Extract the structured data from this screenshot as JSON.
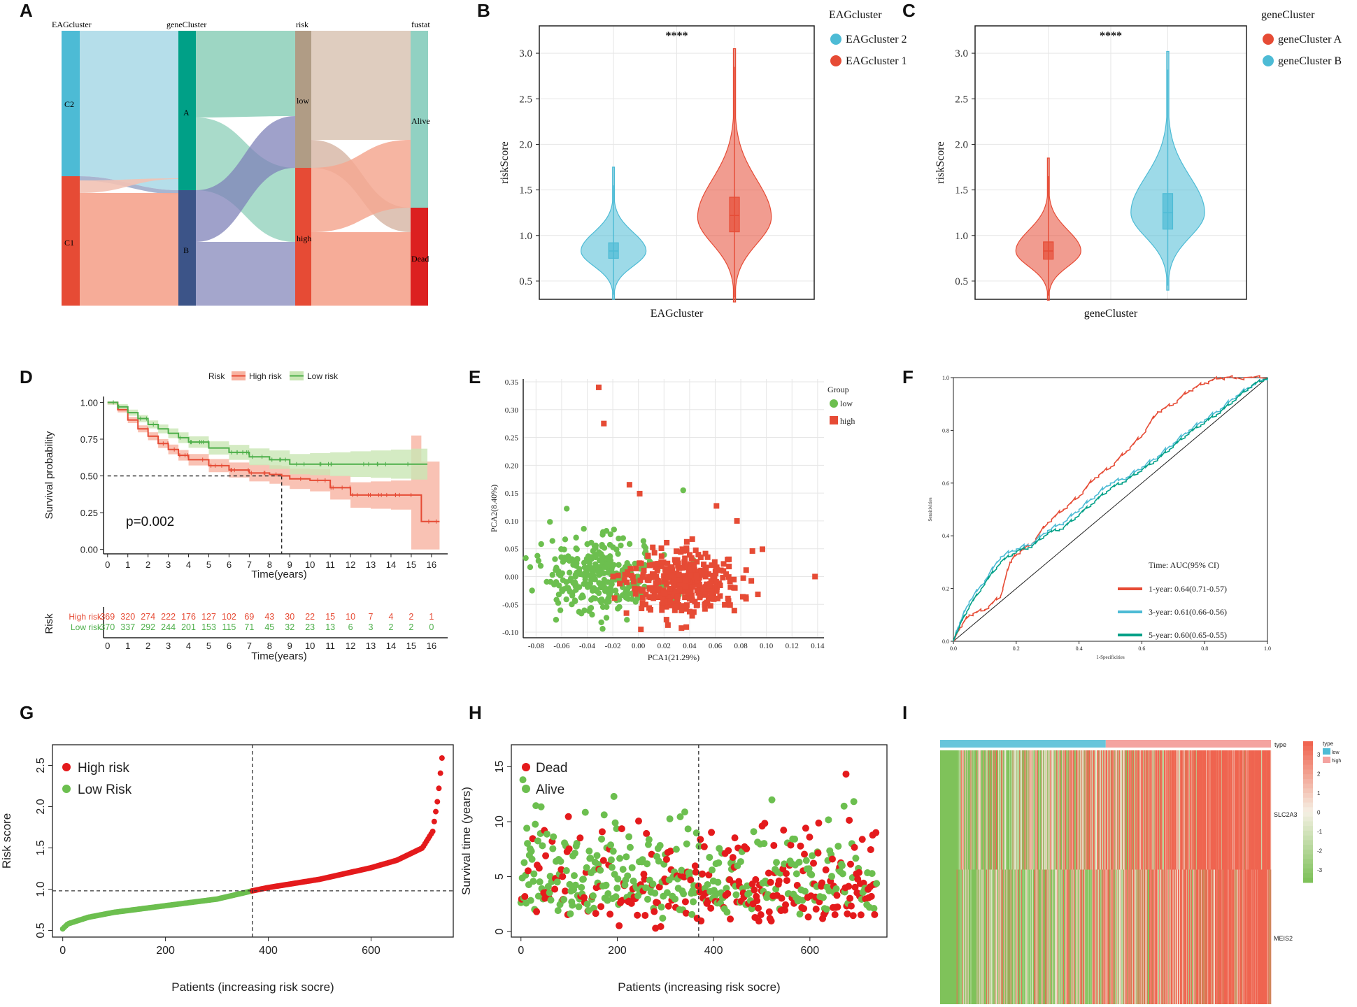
{
  "panels": [
    "A",
    "B",
    "C",
    "D",
    "E",
    "F",
    "G",
    "H",
    "I"
  ],
  "colors": {
    "red": "#e64b35",
    "blue": "#4dbbd5",
    "green": "#6cbf4f",
    "greenDark": "#4daf4a",
    "navy": "#3c5488",
    "teal": "#00a087",
    "tan": "#b09c85",
    "deadRed": "#dc2020",
    "ciRed": "#f8b3a1",
    "ciGreen": "#c9e6b4"
  },
  "chart_data": [
    {
      "panel": "A",
      "type": "sankey",
      "axes": [
        "EAGcluster",
        "geneCluster",
        "risk",
        "fustat"
      ],
      "nodes": {
        "EAGcluster": [
          {
            "label": "C2",
            "share": 0.53
          },
          {
            "label": "C1",
            "share": 0.47
          }
        ],
        "geneCluster": [
          {
            "label": "A",
            "share": 0.58
          },
          {
            "label": "B",
            "share": 0.42
          }
        ],
        "risk": [
          {
            "label": "low",
            "share": 0.5
          },
          {
            "label": "high",
            "share": 0.5
          }
        ],
        "fustat": [
          {
            "label": "Alive",
            "share": 0.64
          },
          {
            "label": "Dead",
            "share": 0.36
          }
        ]
      }
    },
    {
      "panel": "B",
      "type": "violin",
      "xlabel": "EAGcluster",
      "ylabel": "riskScore",
      "ylim": [
        0.3,
        3.3
      ],
      "yticks": [
        "3.0",
        "2.5",
        "2.0",
        "1.5",
        "1.0",
        "0.5"
      ],
      "significance": "****",
      "legend_title": "EAGcluster",
      "legend": [
        {
          "label": "EAGcluster 2",
          "color": "#4dbbd5"
        },
        {
          "label": "EAGcluster 1",
          "color": "#e64b35"
        }
      ],
      "groups": [
        {
          "name": "EAGcluster 2",
          "color": "#4dbbd5",
          "min": 0.3,
          "max": 1.75,
          "q1": 0.75,
          "median": 0.83,
          "q3": 0.92,
          "mode": 0.83,
          "width": 0.75
        },
        {
          "name": "EAGcluster 1",
          "color": "#e64b35",
          "min": 0.27,
          "max": 3.05,
          "q1": 1.04,
          "median": 1.22,
          "q3": 1.42,
          "mode": 1.2,
          "width": 0.85
        }
      ]
    },
    {
      "panel": "C",
      "type": "violin",
      "xlabel": "geneCluster",
      "ylabel": "riskScore",
      "ylim": [
        0.3,
        3.3
      ],
      "yticks": [
        "3.0",
        "2.5",
        "2.0",
        "1.5",
        "1.0",
        "0.5"
      ],
      "significance": "****",
      "legend_title": "geneCluster",
      "legend": [
        {
          "label": "geneCluster A",
          "color": "#e64b35"
        },
        {
          "label": "geneCluster B",
          "color": "#4dbbd5"
        }
      ],
      "groups": [
        {
          "name": "geneCluster A",
          "color": "#e64b35",
          "min": 0.29,
          "max": 1.85,
          "q1": 0.74,
          "median": 0.83,
          "q3": 0.93,
          "mode": 0.83,
          "width": 0.75
        },
        {
          "name": "geneCluster B",
          "color": "#4dbbd5",
          "min": 0.4,
          "max": 3.02,
          "q1": 1.07,
          "median": 1.25,
          "q3": 1.46,
          "mode": 1.25,
          "width": 0.85
        }
      ]
    },
    {
      "panel": "D",
      "type": "line",
      "legend_title": "Risk",
      "legend": [
        {
          "label": "High risk",
          "color": "#e64b35"
        },
        {
          "label": "Low risk",
          "color": "#4daf4a"
        }
      ],
      "ylabel": "Survival probability",
      "xlabel": "Time(years)",
      "xticks": [
        "0",
        "1",
        "2",
        "3",
        "4",
        "5",
        "6",
        "7",
        "8",
        "9",
        "10",
        "11",
        "12",
        "13",
        "14",
        "15",
        "16"
      ],
      "yticks": [
        "1.00",
        "0.75",
        "0.50",
        "0.25",
        "0.00"
      ],
      "annotation": "p=0.002",
      "median_time": 8.6,
      "series": [
        {
          "name": "High risk",
          "color": "#e64b35",
          "x": [
            0,
            0.5,
            1,
            1.5,
            2,
            2.5,
            3,
            3.5,
            4,
            5,
            6,
            7,
            8,
            8.6,
            9,
            10,
            11,
            12,
            13,
            14,
            15,
            15.5,
            16.4
          ],
          "y": [
            1,
            0.95,
            0.88,
            0.82,
            0.77,
            0.72,
            0.68,
            0.64,
            0.61,
            0.57,
            0.54,
            0.52,
            0.51,
            0.5,
            0.48,
            0.47,
            0.42,
            0.37,
            0.37,
            0.37,
            0.37,
            0.19,
            0.19
          ]
        },
        {
          "name": "Low risk",
          "color": "#4daf4a",
          "x": [
            0,
            0.5,
            1,
            1.5,
            2,
            2.5,
            3,
            3.5,
            4,
            5,
            6,
            7,
            8,
            9,
            10,
            11,
            12,
            13,
            14,
            15,
            15.8
          ],
          "y": [
            1,
            0.97,
            0.93,
            0.89,
            0.85,
            0.82,
            0.79,
            0.76,
            0.73,
            0.69,
            0.66,
            0.63,
            0.61,
            0.58,
            0.58,
            0.58,
            0.58,
            0.58,
            0.58,
            0.58,
            0.58
          ]
        }
      ],
      "risk_table": {
        "title": "Risk",
        "xlabel": "Time(years)",
        "rows": [
          {
            "label": "High risk",
            "color": "#e64b35",
            "values": [
              "369",
              "320",
              "274",
              "222",
              "176",
              "127",
              "102",
              "69",
              "43",
              "30",
              "22",
              "15",
              "10",
              "7",
              "4",
              "2",
              "1"
            ]
          },
          {
            "label": "Low risk",
            "color": "#4daf4a",
            "values": [
              "370",
              "337",
              "292",
              "244",
              "201",
              "153",
              "115",
              "71",
              "45",
              "32",
              "23",
              "13",
              "6",
              "3",
              "2",
              "2",
              "0"
            ]
          }
        ]
      }
    },
    {
      "panel": "E",
      "type": "scatter",
      "xlabel": "PCA1(21.29%)",
      "ylabel": "PCA2(8.40%)",
      "xlim": [
        -0.09,
        0.145
      ],
      "ylim": [
        -0.11,
        0.355
      ],
      "xticks": [
        "-0.08",
        "-0.06",
        "-0.04",
        "-0.02",
        "0.00",
        "0.02",
        "0.04",
        "0.06",
        "0.08",
        "0.10",
        "0.12",
        "0.14"
      ],
      "yticks": [
        "0.35",
        "0.30",
        "0.25",
        "0.20",
        "0.15",
        "0.10",
        "0.05",
        "0.00",
        "-0.05",
        "-0.10"
      ],
      "legend_title": "Group",
      "legend": [
        {
          "label": "low",
          "color": "#6cbf4f",
          "shape": "circle"
        },
        {
          "label": "high",
          "color": "#e64b35",
          "shape": "square"
        }
      ],
      "notable_points": [
        {
          "group": "high",
          "x": -0.031,
          "y": 0.34
        },
        {
          "group": "high",
          "x": -0.027,
          "y": 0.275
        },
        {
          "group": "high",
          "x": -0.007,
          "y": 0.165
        },
        {
          "group": "high",
          "x": 0.001,
          "y": 0.149
        },
        {
          "group": "low",
          "x": 0.035,
          "y": 0.155
        },
        {
          "group": "low",
          "x": -0.056,
          "y": 0.122
        },
        {
          "group": "high",
          "x": 0.138,
          "y": 0.0
        },
        {
          "group": "high",
          "x": 0.061,
          "y": 0.127
        },
        {
          "group": "high",
          "x": 0.077,
          "y": 0.1
        }
      ]
    },
    {
      "panel": "F",
      "type": "line",
      "xlabel": "1-Specificities",
      "ylabel": "Sensitivities",
      "xticks": [
        "0.0",
        "0.2",
        "0.4",
        "0.6",
        "0.8",
        "1.0"
      ],
      "yticks": [
        "1.0",
        "0.8",
        "0.6",
        "0.4",
        "0.2",
        "0.0"
      ],
      "legend_title": "Time: AUC(95% CI)",
      "legend": [
        {
          "label": "1-year: 0.64(0.71-0.57)",
          "color": "#e64b35"
        },
        {
          "label": "3-year: 0.61(0.66-0.56)",
          "color": "#4dbbd5"
        },
        {
          "label": "5-year: 0.60(0.65-0.55)",
          "color": "#00a087"
        }
      ],
      "series": [
        {
          "name": "1-year",
          "color": "#e64b35",
          "x": [
            0,
            0.02,
            0.05,
            0.1,
            0.15,
            0.18,
            0.2,
            0.25,
            0.3,
            0.35,
            0.4,
            0.45,
            0.5,
            0.55,
            0.6,
            0.65,
            0.7,
            0.75,
            0.8,
            0.85,
            0.9,
            1.0
          ],
          "y": [
            0,
            0.05,
            0.1,
            0.12,
            0.17,
            0.3,
            0.33,
            0.37,
            0.45,
            0.5,
            0.55,
            0.62,
            0.66,
            0.72,
            0.78,
            0.87,
            0.9,
            0.95,
            0.98,
            1,
            1,
            1
          ]
        },
        {
          "name": "3-year",
          "color": "#4dbbd5",
          "x": [
            0,
            0.02,
            0.05,
            0.1,
            0.15,
            0.2,
            0.25,
            0.3,
            0.35,
            0.4,
            0.45,
            0.5,
            0.55,
            0.6,
            0.65,
            0.7,
            0.75,
            0.8,
            0.85,
            0.9,
            0.95,
            1.0
          ],
          "y": [
            0,
            0.07,
            0.15,
            0.23,
            0.32,
            0.35,
            0.37,
            0.42,
            0.45,
            0.5,
            0.55,
            0.6,
            0.62,
            0.66,
            0.7,
            0.75,
            0.8,
            0.84,
            0.88,
            0.93,
            0.97,
            1
          ]
        },
        {
          "name": "5-year",
          "color": "#00a087",
          "x": [
            0,
            0.02,
            0.05,
            0.1,
            0.15,
            0.2,
            0.25,
            0.3,
            0.35,
            0.4,
            0.45,
            0.5,
            0.55,
            0.6,
            0.65,
            0.7,
            0.75,
            0.8,
            0.85,
            0.9,
            0.95,
            1.0
          ],
          "y": [
            0,
            0.06,
            0.13,
            0.22,
            0.3,
            0.34,
            0.36,
            0.41,
            0.43,
            0.48,
            0.53,
            0.58,
            0.61,
            0.65,
            0.69,
            0.74,
            0.79,
            0.83,
            0.87,
            0.92,
            0.97,
            1
          ]
        }
      ]
    },
    {
      "panel": "G",
      "type": "scatter",
      "xlabel": "Patients (increasing risk socre)",
      "ylabel": "Risk score",
      "xlim": [
        -20,
        760
      ],
      "ylim": [
        0.42,
        2.75
      ],
      "xticks": [
        "0",
        "200",
        "400",
        "600"
      ],
      "yticks": [
        "2.5",
        "2.0",
        "1.5",
        "1.0",
        "0.5"
      ],
      "cutoff_x": 369,
      "cutoff_y": 0.98,
      "legend": [
        {
          "label": "High risk",
          "color": "#e41a1c"
        },
        {
          "label": "Low Risk",
          "color": "#6cbf4f"
        }
      ],
      "curve": {
        "x": [
          0,
          10,
          50,
          100,
          200,
          300,
          369,
          400,
          500,
          600,
          650,
          700,
          720,
          730,
          739
        ],
        "y": [
          0.52,
          0.58,
          0.66,
          0.72,
          0.8,
          0.88,
          0.98,
          1.02,
          1.12,
          1.26,
          1.35,
          1.5,
          1.7,
          2.1,
          2.65
        ]
      }
    },
    {
      "panel": "H",
      "type": "scatter",
      "xlabel": "Patients (increasing risk socre)",
      "ylabel": "Survival time (years)",
      "xlim": [
        -20,
        760
      ],
      "ylim": [
        -0.5,
        17
      ],
      "xticks": [
        "0",
        "200",
        "400",
        "600"
      ],
      "yticks": [
        "15",
        "10",
        "5",
        "0"
      ],
      "cutoff_x": 369,
      "legend": [
        {
          "label": "Dead",
          "color": "#e41a1c"
        },
        {
          "label": "Alive",
          "color": "#6cbf4f"
        }
      ]
    },
    {
      "panel": "I",
      "type": "heatmap",
      "rows": [
        "SLC2A3",
        "MEIS2"
      ],
      "annotation_label": "type",
      "legend_title": "type",
      "legend": [
        {
          "label": "low",
          "color": "#4dbbd5"
        },
        {
          "label": "high",
          "color": "#f4a3a0"
        }
      ],
      "scale_ticks": [
        "3",
        "2",
        "1",
        "0",
        "-1",
        "-2",
        "-3"
      ],
      "low_count": 370,
      "high_count": 369
    }
  ]
}
